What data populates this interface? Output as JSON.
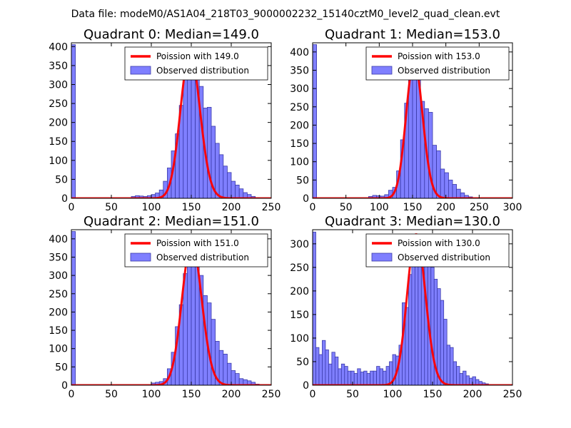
{
  "figure": {
    "suptitle": "Data file: modeM0/AS1A04_218T03_9000002232_15140cztM0_level2_quad_clean.evt"
  },
  "colors": {
    "hist_fill": "#7f7fff",
    "hist_edge": "#3a3aa8",
    "fit_line": "#ff0000"
  },
  "chart_data": [
    {
      "type": "bar",
      "title": "Quadrant 0: Median=149.0",
      "xlim": [
        0,
        250
      ],
      "ylim": [
        0,
        410
      ],
      "xticks": [
        0,
        50,
        100,
        150,
        200,
        250
      ],
      "yticks": [
        0,
        50,
        100,
        150,
        200,
        250,
        300,
        350,
        400
      ],
      "bin_width": 5,
      "bins": [
        [
          0,
          405
        ],
        [
          75,
          5
        ],
        [
          80,
          7
        ],
        [
          85,
          6
        ],
        [
          90,
          5
        ],
        [
          95,
          7
        ],
        [
          100,
          10
        ],
        [
          105,
          14
        ],
        [
          110,
          22
        ],
        [
          115,
          45
        ],
        [
          120,
          80
        ],
        [
          125,
          125
        ],
        [
          130,
          170
        ],
        [
          135,
          245
        ],
        [
          140,
          345
        ],
        [
          145,
          385
        ],
        [
          150,
          385
        ],
        [
          155,
          360
        ],
        [
          160,
          295
        ],
        [
          165,
          238
        ],
        [
          170,
          240
        ],
        [
          175,
          190
        ],
        [
          180,
          145
        ],
        [
          185,
          115
        ],
        [
          190,
          85
        ],
        [
          195,
          68
        ],
        [
          200,
          45
        ],
        [
          205,
          35
        ],
        [
          210,
          25
        ],
        [
          215,
          15
        ],
        [
          220,
          10
        ],
        [
          225,
          5
        ],
        [
          230,
          2
        ]
      ],
      "poisson_mean": 149.0,
      "legend": [
        "Poission with 149.0",
        "Observed distribution"
      ]
    },
    {
      "type": "bar",
      "title": "Quadrant 1: Median=153.0",
      "xlim": [
        0,
        300
      ],
      "ylim": [
        0,
        425
      ],
      "xticks": [
        0,
        50,
        100,
        150,
        200,
        250,
        300
      ],
      "yticks": [
        0,
        50,
        100,
        150,
        200,
        250,
        300,
        350,
        400
      ],
      "bin_width": 6,
      "bins": [
        [
          0,
          420
        ],
        [
          84,
          5
        ],
        [
          90,
          8
        ],
        [
          96,
          7
        ],
        [
          102,
          6
        ],
        [
          108,
          10
        ],
        [
          114,
          22
        ],
        [
          120,
          30
        ],
        [
          126,
          75
        ],
        [
          132,
          160
        ],
        [
          138,
          260
        ],
        [
          144,
          375
        ],
        [
          150,
          360
        ],
        [
          156,
          330
        ],
        [
          162,
          265
        ],
        [
          168,
          245
        ],
        [
          174,
          235
        ],
        [
          180,
          145
        ],
        [
          186,
          130
        ],
        [
          192,
          80
        ],
        [
          198,
          70
        ],
        [
          204,
          50
        ],
        [
          210,
          38
        ],
        [
          216,
          25
        ],
        [
          222,
          15
        ],
        [
          228,
          8
        ],
        [
          234,
          4
        ]
      ],
      "poisson_mean": 153.0,
      "legend": [
        "Poission with 153.0",
        "Observed distribution"
      ]
    },
    {
      "type": "bar",
      "title": "Quadrant 2: Median=151.0",
      "xlim": [
        0,
        250
      ],
      "ylim": [
        0,
        425
      ],
      "xticks": [
        0,
        50,
        100,
        150,
        200,
        250
      ],
      "yticks": [
        0,
        50,
        100,
        150,
        200,
        250,
        300,
        350,
        400
      ],
      "bin_width": 5,
      "bins": [
        [
          0,
          420
        ],
        [
          100,
          6
        ],
        [
          105,
          8
        ],
        [
          110,
          10
        ],
        [
          115,
          18
        ],
        [
          120,
          45
        ],
        [
          125,
          90
        ],
        [
          130,
          160
        ],
        [
          135,
          220
        ],
        [
          140,
          305
        ],
        [
          145,
          365
        ],
        [
          150,
          390
        ],
        [
          155,
          355
        ],
        [
          160,
          300
        ],
        [
          165,
          245
        ],
        [
          170,
          225
        ],
        [
          175,
          180
        ],
        [
          180,
          120
        ],
        [
          185,
          95
        ],
        [
          190,
          85
        ],
        [
          195,
          60
        ],
        [
          200,
          40
        ],
        [
          205,
          32
        ],
        [
          210,
          18
        ],
        [
          215,
          15
        ],
        [
          220,
          12
        ],
        [
          225,
          8
        ],
        [
          230,
          3
        ]
      ],
      "poisson_mean": 151.0,
      "legend": [
        "Poission with 151.0",
        "Observed distribution"
      ]
    },
    {
      "type": "bar",
      "title": "Quadrant 3: Median=130.0",
      "xlim": [
        0,
        250
      ],
      "ylim": [
        0,
        330
      ],
      "xticks": [
        0,
        50,
        100,
        150,
        200,
        250
      ],
      "yticks": [
        0,
        50,
        100,
        150,
        200,
        250,
        300
      ],
      "bin_width": 4,
      "bins": [
        [
          0,
          325
        ],
        [
          4,
          80
        ],
        [
          8,
          65
        ],
        [
          12,
          95
        ],
        [
          16,
          75
        ],
        [
          20,
          45
        ],
        [
          24,
          70
        ],
        [
          28,
          60
        ],
        [
          32,
          35
        ],
        [
          36,
          45
        ],
        [
          40,
          40
        ],
        [
          44,
          30
        ],
        [
          48,
          30
        ],
        [
          52,
          25
        ],
        [
          56,
          35
        ],
        [
          60,
          28
        ],
        [
          64,
          30
        ],
        [
          68,
          25
        ],
        [
          72,
          30
        ],
        [
          76,
          30
        ],
        [
          80,
          40
        ],
        [
          84,
          35
        ],
        [
          88,
          30
        ],
        [
          92,
          40
        ],
        [
          96,
          50
        ],
        [
          100,
          65
        ],
        [
          104,
          62
        ],
        [
          108,
          85
        ],
        [
          112,
          175
        ],
        [
          116,
          165
        ],
        [
          120,
          235
        ],
        [
          124,
          255
        ],
        [
          128,
          270
        ],
        [
          132,
          315
        ],
        [
          136,
          320
        ],
        [
          140,
          280
        ],
        [
          144,
          265
        ],
        [
          148,
          250
        ],
        [
          152,
          225
        ],
        [
          156,
          205
        ],
        [
          160,
          180
        ],
        [
          164,
          140
        ],
        [
          168,
          85
        ],
        [
          172,
          80
        ],
        [
          176,
          50
        ],
        [
          180,
          40
        ],
        [
          184,
          25
        ],
        [
          188,
          30
        ],
        [
          192,
          20
        ],
        [
          196,
          15
        ],
        [
          200,
          18
        ],
        [
          204,
          12
        ],
        [
          208,
          8
        ],
        [
          212,
          5
        ],
        [
          216,
          3
        ]
      ],
      "poisson_mean": 130.0,
      "legend": [
        "Poission with 130.0",
        "Observed distribution"
      ]
    }
  ]
}
